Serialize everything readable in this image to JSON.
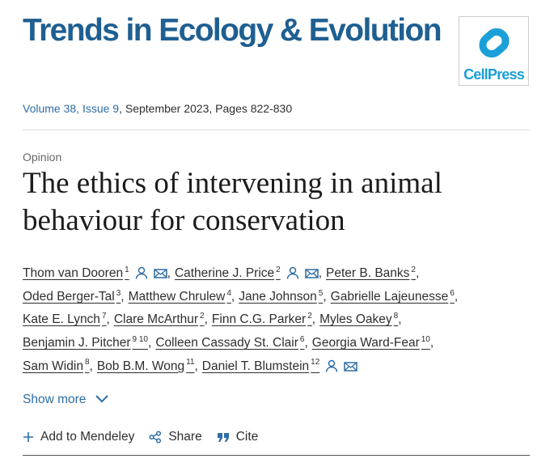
{
  "journal": {
    "title": "Trends in Ecology & Evolution",
    "logo": "CellPress"
  },
  "issue": {
    "volume_issue": "Volume 38, Issue 9",
    "details": ", September 2023, Pages 822-830"
  },
  "article": {
    "type": "Opinion",
    "title": "The ethics of intervening in animal behaviour for conservation"
  },
  "author_separator": ",",
  "authors": [
    [
      {
        "name": "Thom van Dooren",
        "aff": "1",
        "contact": true
      },
      {
        "name": "Catherine J. Price",
        "aff": "2",
        "contact": true
      },
      {
        "name": "Peter B. Banks",
        "aff": "2"
      }
    ],
    [
      {
        "name": "Oded Berger-Tal",
        "aff": "3"
      },
      {
        "name": "Matthew Chrulew",
        "aff": "4"
      },
      {
        "name": "Jane Johnson",
        "aff": "5"
      },
      {
        "name": "Gabrielle Lajeunesse",
        "aff": "6"
      }
    ],
    [
      {
        "name": "Kate E. Lynch",
        "aff": "7"
      },
      {
        "name": "Clare McArthur",
        "aff": "2"
      },
      {
        "name": "Finn C.G. Parker",
        "aff": "2"
      },
      {
        "name": "Myles Oakey",
        "aff": "8"
      }
    ],
    [
      {
        "name": "Benjamin J. Pitcher",
        "aff": "9 10"
      },
      {
        "name": "Colleen Cassady St. Clair",
        "aff": "6"
      },
      {
        "name": "Georgia Ward-Fear",
        "aff": "10"
      }
    ],
    [
      {
        "name": "Sam Widin",
        "aff": "8"
      },
      {
        "name": "Bob B.M. Wong",
        "aff": "11"
      },
      {
        "name": "Daniel T. Blumstein",
        "aff": "12",
        "contact": true
      }
    ]
  ],
  "show_more": "Show more",
  "actions": [
    "Add to Mendeley",
    "Share",
    "Cite"
  ]
}
